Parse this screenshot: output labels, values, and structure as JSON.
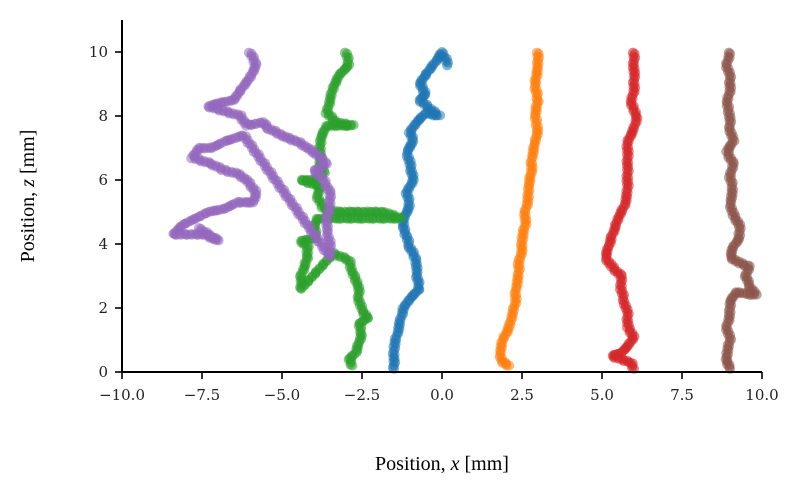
{
  "chart_data": {
    "type": "scatter",
    "title": "",
    "xlabel": {
      "prefix": "Position, ",
      "var": "x",
      "suffix": " [mm]"
    },
    "ylabel": {
      "prefix": "Position, ",
      "var": "z",
      "suffix": " [mm]"
    },
    "xlim": [
      -10,
      10
    ],
    "ylim": [
      0,
      11
    ],
    "x_ticks": [
      -10,
      -7.5,
      -5,
      -2.5,
      0,
      2.5,
      5,
      7.5,
      10
    ],
    "x_tick_labels": [
      "−10.0",
      "−7.5",
      "−5.0",
      "−2.5",
      "0.0",
      "2.5",
      "5.0",
      "7.5",
      "10.0"
    ],
    "y_ticks": [
      0,
      2,
      4,
      6,
      8,
      10
    ],
    "y_tick_labels": [
      "0",
      "2",
      "4",
      "6",
      "8",
      "10"
    ],
    "grid": false,
    "legend": "none",
    "series": [
      {
        "color": "#1f77b4",
        "points": [
          [
            0.2,
            9.6
          ],
          [
            0.0,
            10.0
          ],
          [
            -0.2,
            9.7
          ],
          [
            -0.5,
            9.3
          ],
          [
            -0.7,
            9.0
          ],
          [
            -0.5,
            8.7
          ],
          [
            -0.7,
            8.5
          ],
          [
            -0.1,
            8.0
          ],
          [
            -0.5,
            8.1
          ],
          [
            -0.8,
            7.8
          ],
          [
            -1.0,
            7.5
          ],
          [
            -0.9,
            7.2
          ],
          [
            -1.1,
            6.9
          ],
          [
            -1.0,
            6.5
          ],
          [
            -0.9,
            6.0
          ],
          [
            -1.1,
            5.6
          ],
          [
            -1.0,
            5.2
          ],
          [
            -1.2,
            4.8
          ],
          [
            -1.2,
            4.5
          ],
          [
            -1.1,
            4.2
          ],
          [
            -1.0,
            3.9
          ],
          [
            -0.8,
            3.5
          ],
          [
            -0.8,
            3.1
          ],
          [
            -0.7,
            2.6
          ],
          [
            -1.0,
            2.3
          ],
          [
            -1.2,
            2.0
          ],
          [
            -1.3,
            1.6
          ],
          [
            -1.4,
            1.2
          ],
          [
            -1.5,
            0.8
          ],
          [
            -1.5,
            0.4
          ],
          [
            -1.5,
            0.1
          ]
        ]
      },
      {
        "color": "#ff7f0e",
        "points": [
          [
            3.0,
            10.0
          ],
          [
            3.0,
            9.5
          ],
          [
            2.9,
            9.0
          ],
          [
            3.0,
            8.5
          ],
          [
            2.9,
            8.0
          ],
          [
            3.0,
            7.6
          ],
          [
            2.9,
            7.1
          ],
          [
            2.8,
            6.7
          ],
          [
            2.8,
            6.3
          ],
          [
            2.7,
            5.8
          ],
          [
            2.7,
            5.4
          ],
          [
            2.6,
            5.0
          ],
          [
            2.6,
            4.6
          ],
          [
            2.5,
            4.2
          ],
          [
            2.5,
            3.8
          ],
          [
            2.4,
            3.4
          ],
          [
            2.4,
            3.0
          ],
          [
            2.3,
            2.6
          ],
          [
            2.3,
            2.2
          ],
          [
            2.2,
            1.8
          ],
          [
            2.1,
            1.4
          ],
          [
            1.9,
            1.0
          ],
          [
            1.8,
            0.6
          ],
          [
            1.9,
            0.3
          ],
          [
            2.1,
            0.2
          ]
        ]
      },
      {
        "color": "#2ca02c",
        "points": [
          [
            -3.0,
            10.0
          ],
          [
            -2.9,
            9.6
          ],
          [
            -3.2,
            9.3
          ],
          [
            -3.4,
            8.9
          ],
          [
            -3.5,
            8.5
          ],
          [
            -3.6,
            8.1
          ],
          [
            -3.3,
            7.8
          ],
          [
            -2.8,
            7.7
          ],
          [
            -3.6,
            7.7
          ],
          [
            -3.8,
            7.3
          ],
          [
            -3.8,
            6.9
          ],
          [
            -3.8,
            6.5
          ],
          [
            -3.7,
            6.2
          ],
          [
            -4.0,
            6.0
          ],
          [
            -4.4,
            6.0
          ],
          [
            -3.8,
            5.8
          ],
          [
            -3.9,
            5.5
          ],
          [
            -3.7,
            5.1
          ],
          [
            -3.3,
            5.0
          ],
          [
            -2.8,
            5.0
          ],
          [
            -2.3,
            5.0
          ],
          [
            -1.8,
            5.0
          ],
          [
            -1.3,
            4.8
          ],
          [
            -3.9,
            4.8
          ],
          [
            -4.0,
            4.5
          ],
          [
            -3.9,
            4.2
          ],
          [
            -4.4,
            4.1
          ],
          [
            -4.2,
            3.9
          ],
          [
            -4.2,
            3.6
          ],
          [
            -4.3,
            3.3
          ],
          [
            -4.4,
            3.0
          ],
          [
            -4.4,
            2.6
          ],
          [
            -3.4,
            3.7
          ],
          [
            -2.9,
            3.5
          ],
          [
            -2.8,
            3.1
          ],
          [
            -2.6,
            2.7
          ],
          [
            -2.6,
            2.3
          ],
          [
            -2.5,
            1.9
          ],
          [
            -2.3,
            1.7
          ],
          [
            -2.6,
            1.5
          ],
          [
            -2.5,
            1.2
          ],
          [
            -2.6,
            0.9
          ],
          [
            -2.7,
            0.6
          ],
          [
            -2.9,
            0.4
          ],
          [
            -2.8,
            0.2
          ]
        ]
      },
      {
        "color": "#d62728",
        "points": [
          [
            6.0,
            10.0
          ],
          [
            6.0,
            9.6
          ],
          [
            6.0,
            9.2
          ],
          [
            6.0,
            8.8
          ],
          [
            5.9,
            8.4
          ],
          [
            6.1,
            8.0
          ],
          [
            6.0,
            7.6
          ],
          [
            5.8,
            7.2
          ],
          [
            5.8,
            6.8
          ],
          [
            5.8,
            6.4
          ],
          [
            5.8,
            6.0
          ],
          [
            5.8,
            5.6
          ],
          [
            5.7,
            5.2
          ],
          [
            5.5,
            4.8
          ],
          [
            5.4,
            4.5
          ],
          [
            5.3,
            4.2
          ],
          [
            5.2,
            3.9
          ],
          [
            5.1,
            3.6
          ],
          [
            5.3,
            3.3
          ],
          [
            5.6,
            3.0
          ],
          [
            5.6,
            2.6
          ],
          [
            5.7,
            2.2
          ],
          [
            5.8,
            1.8
          ],
          [
            5.8,
            1.4
          ],
          [
            6.0,
            1.1
          ],
          [
            5.8,
            0.8
          ],
          [
            5.6,
            0.6
          ],
          [
            5.3,
            0.5
          ],
          [
            5.9,
            0.3
          ],
          [
            6.0,
            0.1
          ]
        ]
      },
      {
        "color": "#9467bd",
        "points": [
          [
            -6.0,
            10.0
          ],
          [
            -5.8,
            9.6
          ],
          [
            -6.0,
            9.2
          ],
          [
            -6.3,
            8.8
          ],
          [
            -6.5,
            8.5
          ],
          [
            -7.0,
            8.4
          ],
          [
            -7.3,
            8.3
          ],
          [
            -6.3,
            8.0
          ],
          [
            -6.1,
            7.7
          ],
          [
            -5.6,
            7.8
          ],
          [
            -5.4,
            7.6
          ],
          [
            -5.0,
            7.4
          ],
          [
            -4.8,
            7.3
          ],
          [
            -4.5,
            7.2
          ],
          [
            -4.2,
            7.0
          ],
          [
            -3.9,
            6.8
          ],
          [
            -3.6,
            6.5
          ],
          [
            -4.0,
            6.3
          ],
          [
            -3.7,
            6.0
          ],
          [
            -3.5,
            5.6
          ],
          [
            -3.5,
            5.2
          ],
          [
            -3.6,
            4.8
          ],
          [
            -3.6,
            4.4
          ],
          [
            -3.5,
            4.0
          ],
          [
            -3.5,
            3.6
          ],
          [
            -6.2,
            7.4
          ],
          [
            -6.5,
            7.3
          ],
          [
            -6.8,
            7.2
          ],
          [
            -7.2,
            7.0
          ],
          [
            -7.6,
            7.0
          ],
          [
            -7.8,
            6.7
          ],
          [
            -7.2,
            6.5
          ],
          [
            -6.8,
            6.3
          ],
          [
            -6.4,
            6.2
          ],
          [
            -6.1,
            6.0
          ],
          [
            -5.8,
            5.6
          ],
          [
            -5.9,
            5.3
          ],
          [
            -6.4,
            5.3
          ],
          [
            -6.8,
            5.1
          ],
          [
            -7.3,
            5.0
          ],
          [
            -7.7,
            4.8
          ],
          [
            -8.1,
            4.6
          ],
          [
            -8.4,
            4.3
          ],
          [
            -7.4,
            4.3
          ],
          [
            -7.0,
            4.1
          ],
          [
            -7.6,
            4.5
          ]
        ]
      },
      {
        "color": "#8c564b",
        "points": [
          [
            9.0,
            10.0
          ],
          [
            8.9,
            9.6
          ],
          [
            9.0,
            9.2
          ],
          [
            9.0,
            8.8
          ],
          [
            8.9,
            8.4
          ],
          [
            9.0,
            8.0
          ],
          [
            9.0,
            7.6
          ],
          [
            9.1,
            7.2
          ],
          [
            8.9,
            6.9
          ],
          [
            9.1,
            6.5
          ],
          [
            9.0,
            6.1
          ],
          [
            9.1,
            5.7
          ],
          [
            9.0,
            5.3
          ],
          [
            9.1,
            4.9
          ],
          [
            9.3,
            4.6
          ],
          [
            9.3,
            4.2
          ],
          [
            9.1,
            3.9
          ],
          [
            9.0,
            3.6
          ],
          [
            9.3,
            3.4
          ],
          [
            9.6,
            3.3
          ],
          [
            9.5,
            3.0
          ],
          [
            9.6,
            2.7
          ],
          [
            9.8,
            2.4
          ],
          [
            9.2,
            2.5
          ],
          [
            9.0,
            2.2
          ],
          [
            9.0,
            1.8
          ],
          [
            8.9,
            1.4
          ],
          [
            9.0,
            1.0
          ],
          [
            8.9,
            0.6
          ],
          [
            8.9,
            0.3
          ],
          [
            9.0,
            0.1
          ]
        ]
      }
    ]
  }
}
